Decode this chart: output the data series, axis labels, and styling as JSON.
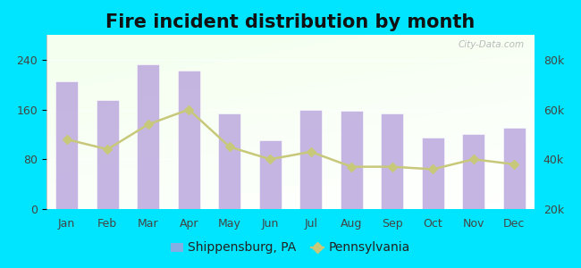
{
  "title": "Fire incident distribution by month",
  "months": [
    "Jan",
    "Feb",
    "Mar",
    "Apr",
    "May",
    "Jun",
    "Jul",
    "Aug",
    "Sep",
    "Oct",
    "Nov",
    "Dec"
  ],
  "shippensburg_values": [
    205,
    175,
    232,
    222,
    153,
    110,
    160,
    158,
    153,
    115,
    120,
    130
  ],
  "pennsylvania_values": [
    48000,
    44000,
    54000,
    60000,
    45000,
    40000,
    43000,
    37000,
    37000,
    36000,
    40000,
    38000
  ],
  "bar_color": "#b39ddb",
  "bar_color_alpha": 0.75,
  "line_color": "#c8c87a",
  "background_color": "#00e5ff",
  "left_ylim": [
    0,
    280
  ],
  "right_ylim": [
    20000,
    90000
  ],
  "left_yticks": [
    0,
    80,
    160,
    240
  ],
  "right_yticks": [
    20000,
    40000,
    60000,
    80000
  ],
  "right_yticklabels": [
    "20k",
    "40k",
    "60k",
    "80k"
  ],
  "title_fontsize": 15,
  "tick_fontsize": 9,
  "legend_fontsize": 10,
  "legend_label1": "Shippensburg, PA",
  "legend_label2": "Pennsylvania",
  "watermark": "City-Data.com"
}
